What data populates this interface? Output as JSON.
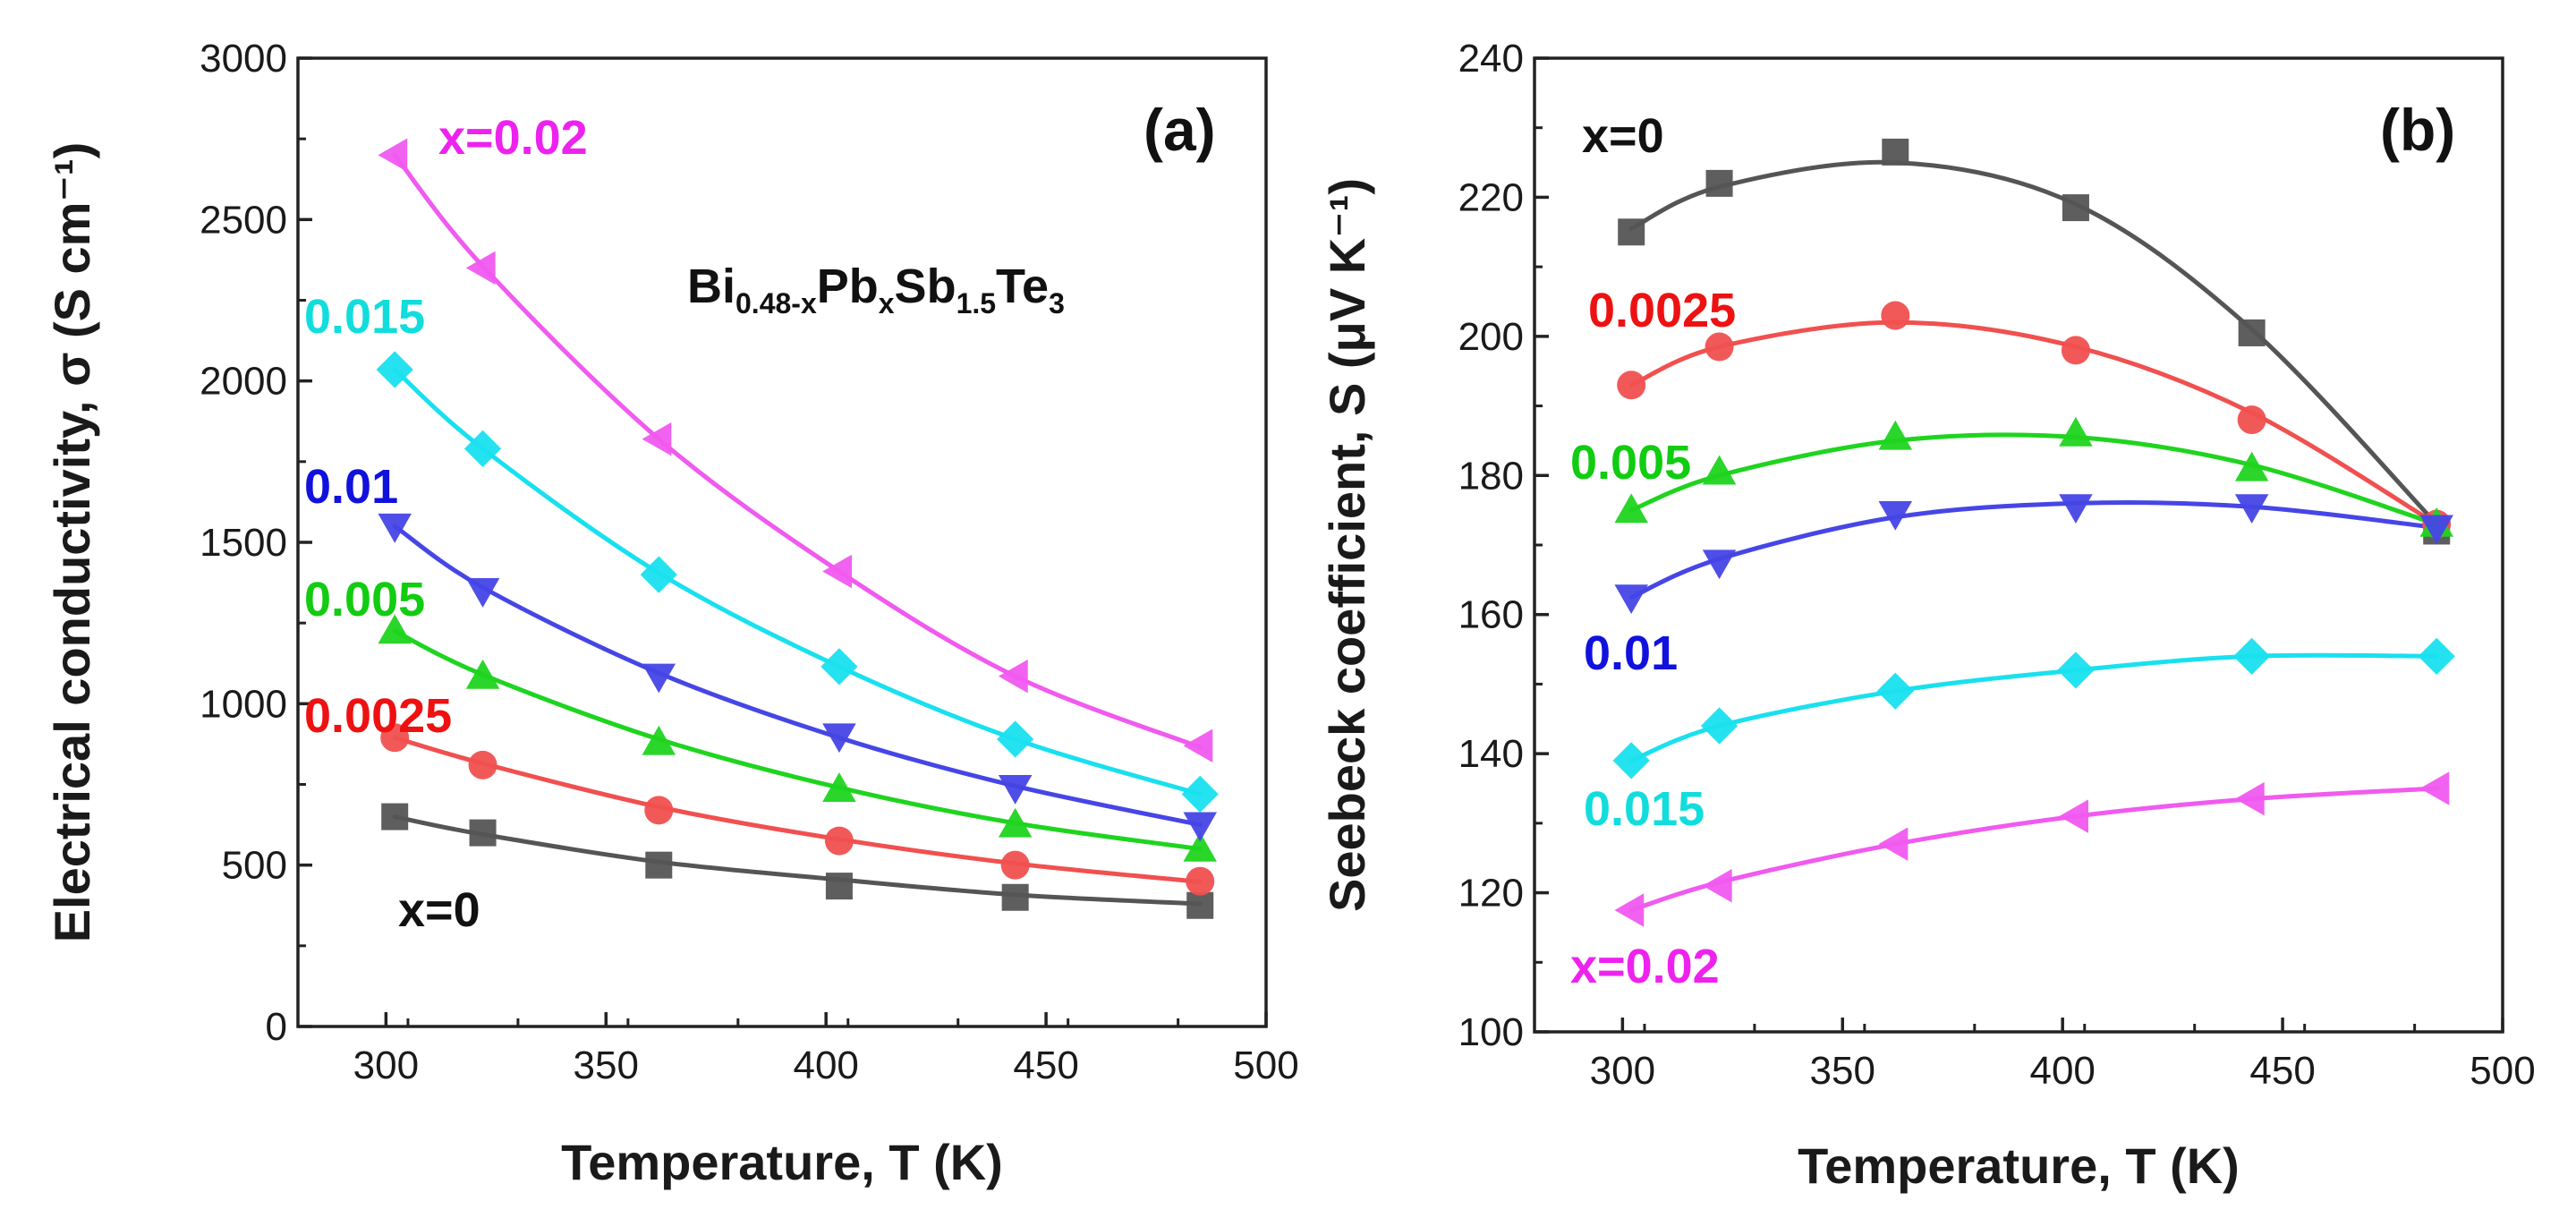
{
  "colors": {
    "x0": "#555555",
    "x0025": "#f0504f",
    "x005": "#1fd41f",
    "x01": "#4646e6",
    "x015": "#19e0ef",
    "x02": "#f05aef",
    "x0_label": "#111111",
    "x0025_label": "#ee1111",
    "x005_label": "#11cc11",
    "x01_label": "#1111dd",
    "x015_label": "#11dddd",
    "x02_label": "#ee22ee"
  },
  "chart_data": [
    {
      "type": "line",
      "panel_label": "(a)",
      "title": "",
      "xlabel": "Temperature, T (K)",
      "ylabel": "Electrical conductivity, σ (S cm⁻¹)",
      "xlim": [
        280,
        500
      ],
      "ylim": [
        0,
        3000
      ],
      "xticks": [
        "300",
        "350",
        "400",
        "450",
        "500"
      ],
      "yticks": [
        "0",
        "500",
        "1000",
        "1500",
        "2000",
        "2500",
        "3000"
      ],
      "formula": {
        "base": [
          "Bi",
          "Pb",
          "Sb",
          "Te"
        ],
        "subs": [
          "0.48-x",
          "x",
          "1.5",
          "3"
        ]
      },
      "series": [
        {
          "name": "x=0",
          "label": "x=0",
          "marker": "square",
          "x": [
            302,
            322,
            362,
            403,
            443,
            485
          ],
          "y": [
            650,
            600,
            500,
            435,
            400,
            375
          ],
          "fit": [
            650,
            595,
            510,
            455,
            408,
            380
          ]
        },
        {
          "name": "x=0.0025",
          "label": "0.0025",
          "marker": "circle",
          "x": [
            302,
            322,
            362,
            403,
            443,
            485
          ],
          "y": [
            895,
            810,
            670,
            575,
            500,
            450
          ],
          "fit": [
            895,
            815,
            680,
            580,
            505,
            448
          ]
        },
        {
          "name": "x=0.005",
          "label": "0.005",
          "marker": "triangle-up",
          "x": [
            302,
            322,
            362,
            403,
            443,
            485
          ],
          "y": [
            1225,
            1085,
            880,
            735,
            625,
            550
          ],
          "fit": [
            1225,
            1090,
            890,
            740,
            630,
            550
          ]
        },
        {
          "name": "x=0.01",
          "label": "0.01",
          "marker": "triangle-down",
          "x": [
            302,
            322,
            362,
            403,
            443,
            485
          ],
          "y": [
            1550,
            1350,
            1085,
            900,
            740,
            625
          ],
          "fit": [
            1550,
            1360,
            1095,
            895,
            745,
            625
          ]
        },
        {
          "name": "x=0.015",
          "label": "0.015",
          "marker": "diamond",
          "x": [
            302,
            322,
            362,
            403,
            443,
            485
          ],
          "y": [
            2035,
            1790,
            1400,
            1115,
            890,
            720
          ],
          "fit": [
            2035,
            1790,
            1405,
            1115,
            890,
            720
          ]
        },
        {
          "name": "x=0.02",
          "label": "x=0.02",
          "marker": "triangle-left",
          "x": [
            302,
            322,
            362,
            403,
            443,
            485
          ],
          "y": [
            2700,
            2350,
            1820,
            1410,
            1085,
            870
          ],
          "fit": [
            2700,
            2355,
            1820,
            1410,
            1085,
            865
          ]
        }
      ]
    },
    {
      "type": "line",
      "panel_label": "(b)",
      "title": "",
      "xlabel": "Temperature, T (K)",
      "ylabel": "Seebeck coefficient, S (μV K⁻¹)",
      "xlim": [
        280,
        500
      ],
      "ylim": [
        100,
        240
      ],
      "xticks": [
        "300",
        "350",
        "400",
        "450",
        "500"
      ],
      "yticks": [
        "100",
        "120",
        "140",
        "160",
        "180",
        "200",
        "220",
        "240"
      ],
      "series": [
        {
          "name": "x=0",
          "label": "x=0",
          "marker": "square",
          "x": [
            302,
            322,
            362,
            403,
            443,
            485
          ],
          "y": [
            215,
            222,
            226.5,
            218.5,
            200.5,
            172
          ],
          "fit": [
            215.5,
            221.5,
            225,
            219,
            201,
            173
          ]
        },
        {
          "name": "x=0.0025",
          "label": "0.0025",
          "marker": "circle",
          "x": [
            302,
            322,
            362,
            403,
            443,
            485
          ],
          "y": [
            193,
            198.5,
            203,
            198,
            188,
            173
          ],
          "fit": [
            193,
            198.5,
            202,
            198.5,
            189,
            173
          ]
        },
        {
          "name": "x=0.005",
          "label": "0.005",
          "marker": "triangle-up",
          "x": [
            302,
            322,
            362,
            403,
            443,
            485
          ],
          "y": [
            175,
            180.5,
            185.5,
            186,
            181,
            173
          ],
          "fit": [
            175,
            180,
            185,
            185.5,
            181.5,
            173
          ]
        },
        {
          "name": "x=0.01",
          "label": "0.01",
          "marker": "triangle-down",
          "x": [
            302,
            322,
            362,
            403,
            443,
            485
          ],
          "y": [
            162.5,
            167.5,
            174.5,
            175.5,
            175.5,
            172.5
          ],
          "fit": [
            162.5,
            168,
            174,
            176,
            175.5,
            172.5
          ]
        },
        {
          "name": "x=0.015",
          "label": "0.015",
          "marker": "diamond",
          "x": [
            302,
            322,
            362,
            403,
            443,
            485
          ],
          "y": [
            139,
            144,
            149,
            152,
            154,
            154
          ],
          "fit": [
            139,
            144,
            149,
            152,
            154,
            154
          ]
        },
        {
          "name": "x=0.02",
          "label": "x=0.02",
          "marker": "triangle-left",
          "x": [
            302,
            322,
            362,
            403,
            443,
            485
          ],
          "y": [
            117.5,
            121,
            127,
            131,
            133.5,
            135
          ],
          "fit": [
            117.5,
            121.5,
            127,
            131,
            133.5,
            135
          ]
        }
      ]
    }
  ]
}
